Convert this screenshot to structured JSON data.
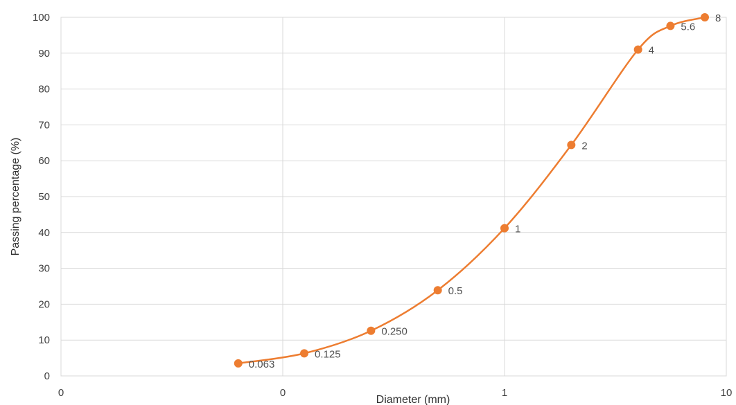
{
  "chart_data": {
    "type": "line",
    "title": "",
    "xlabel": "Diameter (mm)",
    "ylabel": "Passing percentage (%)",
    "x_scale": "log",
    "xlim": [
      0.01,
      10
    ],
    "ylim": [
      0,
      100
    ],
    "x_ticks": [
      0.01,
      0.1,
      1,
      10
    ],
    "x_tick_labels": [
      "0",
      "0",
      "1",
      "10"
    ],
    "y_ticks": [
      0,
      10,
      20,
      30,
      40,
      50,
      60,
      70,
      80,
      90,
      100
    ],
    "y_tick_labels": [
      "0",
      "10",
      "20",
      "30",
      "40",
      "50",
      "60",
      "70",
      "80",
      "90",
      "100"
    ],
    "grid": "on",
    "smooth": true,
    "series": [
      {
        "color": "#ED7D31",
        "points": [
          {
            "x": 0.063,
            "y": 3.5,
            "label": "0.063"
          },
          {
            "x": 0.125,
            "y": 6.3,
            "label": "0.125"
          },
          {
            "x": 0.25,
            "y": 12.6,
            "label": "0.250"
          },
          {
            "x": 0.5,
            "y": 23.9,
            "label": "0.5"
          },
          {
            "x": 1,
            "y": 41.2,
            "label": "1"
          },
          {
            "x": 2,
            "y": 64.4,
            "label": "2"
          },
          {
            "x": 4,
            "y": 91.0,
            "label": "4"
          },
          {
            "x": 5.6,
            "y": 97.6,
            "label": "5.6"
          },
          {
            "x": 8,
            "y": 100,
            "label": "8"
          }
        ]
      }
    ]
  }
}
